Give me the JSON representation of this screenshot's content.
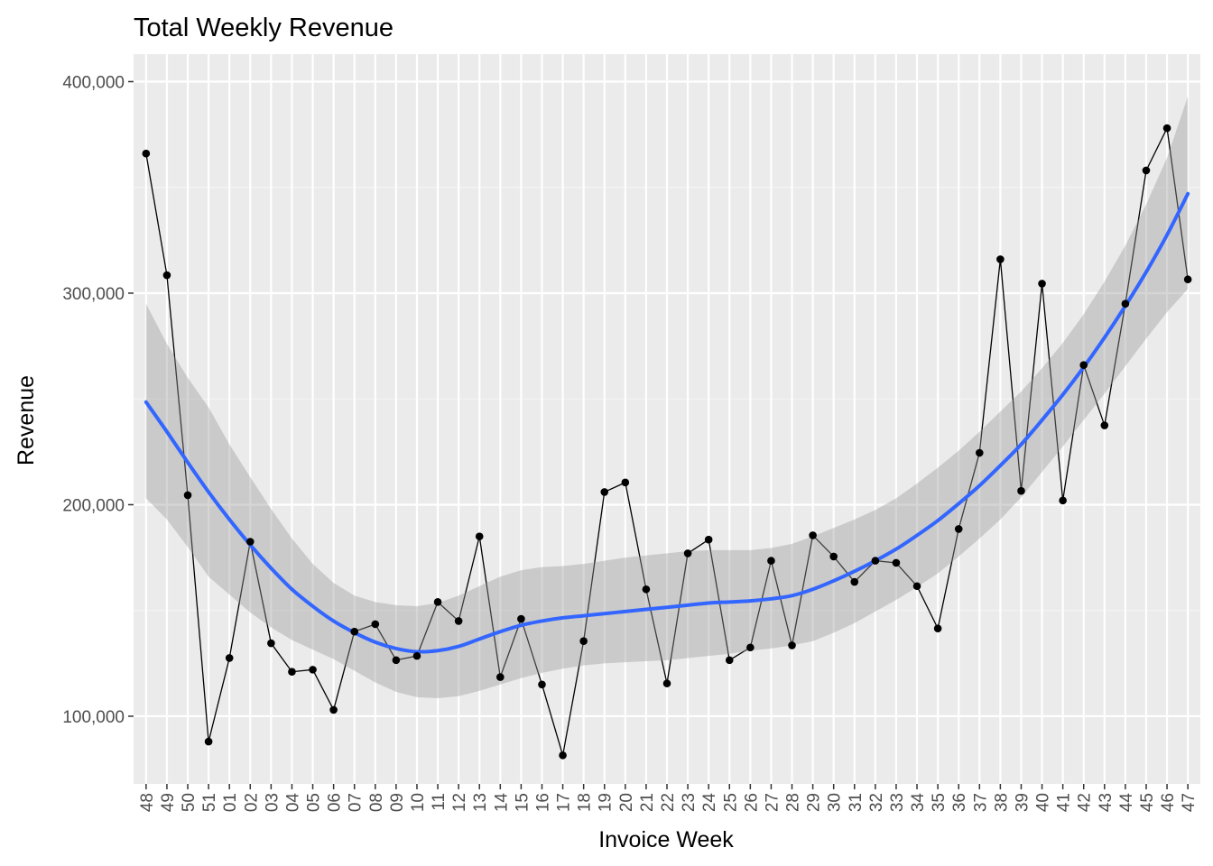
{
  "chart_data": {
    "type": "line",
    "title": "Total Weekly Revenue",
    "xlabel": "Invoice Week",
    "ylabel": "Revenue",
    "ylim": [
      68000,
      413000
    ],
    "y_ticks": [
      100000,
      200000,
      300000,
      400000
    ],
    "y_tick_labels": [
      "100,000",
      "200,000",
      "300,000",
      "400,000"
    ],
    "categories": [
      "48",
      "49",
      "50",
      "51",
      "01",
      "02",
      "03",
      "04",
      "05",
      "06",
      "07",
      "08",
      "09",
      "10",
      "11",
      "12",
      "13",
      "14",
      "15",
      "16",
      "17",
      "18",
      "19",
      "20",
      "21",
      "22",
      "23",
      "24",
      "25",
      "26",
      "27",
      "28",
      "29",
      "30",
      "31",
      "32",
      "33",
      "34",
      "35",
      "36",
      "37",
      "38",
      "39",
      "40",
      "41",
      "42",
      "43",
      "44",
      "45",
      "46",
      "47"
    ],
    "series": [
      {
        "values": [
          366000,
          308500,
          204500,
          88000,
          127500,
          182500,
          134500,
          121000,
          122000,
          103000,
          140000,
          143500,
          126500,
          128500,
          154000,
          145000,
          185000,
          118500,
          146000,
          115000,
          81500,
          135500,
          206000,
          210500,
          160000,
          115500,
          177000,
          183500,
          126500,
          132500,
          173500,
          133500,
          185500,
          175500,
          163500,
          173500,
          172500,
          161500,
          141500,
          188500,
          224500,
          316000,
          206500,
          304500,
          202000,
          266000,
          237500,
          295000,
          358000,
          378000,
          306500
        ]
      }
    ],
    "smooth": {
      "values": [
        248500,
        234500,
        220000,
        206000,
        193000,
        181000,
        170000,
        160000,
        152000,
        145000,
        139500,
        135000,
        132000,
        130500,
        131000,
        133000,
        136500,
        140000,
        143000,
        145000,
        146500,
        147500,
        148500,
        149500,
        150500,
        151500,
        152500,
        153500,
        154000,
        154500,
        155500,
        157000,
        160000,
        164000,
        168500,
        173500,
        179000,
        185500,
        192500,
        200500,
        209000,
        218500,
        228500,
        240000,
        252000,
        265000,
        279000,
        294000,
        310000,
        327500,
        347000
      ],
      "upper": [
        295000,
        276000,
        260000,
        246000,
        228500,
        213000,
        198000,
        184000,
        172000,
        163000,
        157000,
        154000,
        152500,
        152000,
        153500,
        157000,
        161500,
        166000,
        169000,
        170500,
        171000,
        172000,
        173500,
        175000,
        176000,
        177000,
        178000,
        178500,
        178500,
        178500,
        179500,
        181500,
        185000,
        189000,
        193000,
        197500,
        203000,
        210000,
        217500,
        225500,
        234500,
        244000,
        253500,
        264500,
        276500,
        290000,
        305500,
        322500,
        342000,
        364000,
        393000
      ],
      "lower": [
        203000,
        193000,
        180000,
        166000,
        157500,
        149000,
        142000,
        136000,
        131500,
        127000,
        121500,
        116000,
        111500,
        109000,
        108500,
        109500,
        112000,
        115000,
        118000,
        120500,
        122500,
        124000,
        125000,
        125500,
        126000,
        126500,
        127500,
        128500,
        129500,
        131000,
        132000,
        133500,
        135500,
        139500,
        144000,
        149500,
        155000,
        161000,
        167500,
        175500,
        184000,
        193000,
        203500,
        215500,
        227500,
        240000,
        252500,
        265500,
        278500,
        291000,
        302000
      ]
    },
    "colors": {
      "panel_background": "#ebebeb",
      "grid_major": "#ffffff",
      "grid_minor": "#f5f5f5",
      "line": "#000000",
      "point": "#000000",
      "smooth_line": "#3366ff",
      "ribbon": "#999999"
    },
    "legend": "none",
    "grid": true
  }
}
